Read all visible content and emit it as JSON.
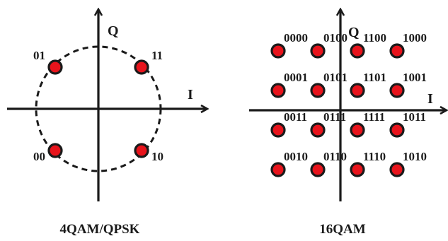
{
  "colors": {
    "point_fill": "#e8141c",
    "stroke": "#1a1a1a",
    "background": "#ffffff"
  },
  "qpsk": {
    "caption": "4QAM/QPSK",
    "axis_i": "I",
    "axis_q": "Q",
    "circle": "dashed",
    "points": [
      {
        "i": -1,
        "q": 1,
        "label": "01"
      },
      {
        "i": 1,
        "q": 1,
        "label": "11"
      },
      {
        "i": -1,
        "q": -1,
        "label": "00"
      },
      {
        "i": 1,
        "q": -1,
        "label": "10"
      }
    ]
  },
  "qam16": {
    "caption": "16QAM",
    "axis_i": "I",
    "axis_q": "Q",
    "points": [
      {
        "i": -3,
        "q": 3,
        "label": "0000"
      },
      {
        "i": -1,
        "q": 3,
        "label": "0100"
      },
      {
        "i": 1,
        "q": 3,
        "label": "1100"
      },
      {
        "i": 3,
        "q": 3,
        "label": "1000"
      },
      {
        "i": -3,
        "q": 1,
        "label": "0001"
      },
      {
        "i": -1,
        "q": 1,
        "label": "0101"
      },
      {
        "i": 1,
        "q": 1,
        "label": "1101"
      },
      {
        "i": 3,
        "q": 1,
        "label": "1001"
      },
      {
        "i": -3,
        "q": -1,
        "label": "0011"
      },
      {
        "i": -1,
        "q": -1,
        "label": "0111"
      },
      {
        "i": 1,
        "q": -1,
        "label": "1111"
      },
      {
        "i": 3,
        "q": -1,
        "label": "1011"
      },
      {
        "i": -3,
        "q": -3,
        "label": "0010"
      },
      {
        "i": -1,
        "q": -3,
        "label": "0110"
      },
      {
        "i": 1,
        "q": -3,
        "label": "1110"
      },
      {
        "i": 3,
        "q": -3,
        "label": "1010"
      }
    ]
  }
}
